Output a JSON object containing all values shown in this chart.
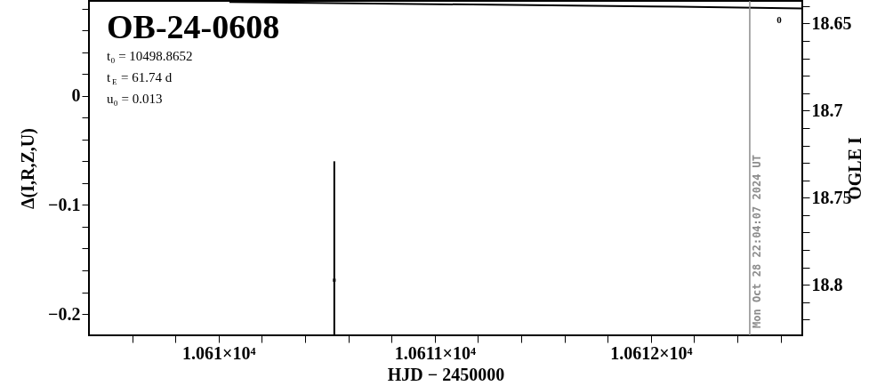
{
  "chart_data": {
    "type": "scatter",
    "title": "OB-24-0608",
    "annotations": [
      "t₀ = 10498.8652",
      "t$_{E}$ = 61.74 d",
      "u₀ = 0.013",
      "0",
      "Mon Oct 28 22:04:07 2024 UT"
    ],
    "xlabel": "HJD − 2450000",
    "ylabel": "Δ(I,R,Z,U)",
    "y2label": "OGLE I",
    "xlim": [
      10609.4,
      10612.7
    ],
    "xticks": [
      {
        "value": 10609.6,
        "label": null
      },
      {
        "value": 10609.8,
        "label": null
      },
      {
        "value": 10610,
        "label": "1.061×10⁴"
      },
      {
        "value": 10610.2,
        "label": null
      },
      {
        "value": 10610.4,
        "label": null
      },
      {
        "value": 10610.6,
        "label": null
      },
      {
        "value": 10610.8,
        "label": null
      },
      {
        "value": 10611,
        "label": "1.0611×10⁴"
      },
      {
        "value": 10611.2,
        "label": null
      },
      {
        "value": 10611.4,
        "label": null
      },
      {
        "value": 10611.6,
        "label": null
      },
      {
        "value": 10611.8,
        "label": null
      },
      {
        "value": 10612,
        "label": "1.0612×10⁴"
      },
      {
        "value": 10612.2,
        "label": null
      },
      {
        "value": 10612.4,
        "label": null
      },
      {
        "value": 10612.6,
        "label": null
      }
    ],
    "ylim": [
      -0.2195,
      0.087
    ],
    "yticks": [
      {
        "value": 0.08,
        "label": null
      },
      {
        "value": 0.06,
        "label": null
      },
      {
        "value": 0.04,
        "label": null
      },
      {
        "value": 0.02,
        "label": null
      },
      0,
      {
        "value": -0.02,
        "label": null
      },
      {
        "value": -0.04,
        "label": null
      },
      {
        "value": -0.06,
        "label": null
      },
      {
        "value": -0.08,
        "label": null
      },
      {
        "value": -0.1,
        "label": "−0.1"
      },
      {
        "value": -0.12,
        "label": null
      },
      {
        "value": -0.14,
        "label": null
      },
      {
        "value": -0.16,
        "label": null
      },
      {
        "value": -0.18,
        "label": null
      },
      {
        "value": -0.2,
        "label": "−0.2"
      }
    ],
    "y2lim": [
      18.829,
      18.637
    ],
    "y2ticks": [
      {
        "value": 18.64,
        "label": null
      },
      18.65,
      {
        "value": 18.66,
        "label": null
      },
      {
        "value": 18.67,
        "label": null
      },
      {
        "value": 18.68,
        "label": null
      },
      {
        "value": 18.69,
        "label": null
      },
      18.7,
      {
        "value": 18.71,
        "label": null
      },
      {
        "value": 18.72,
        "label": null
      },
      {
        "value": 18.73,
        "label": null
      },
      {
        "value": 18.74,
        "label": null
      },
      18.75,
      {
        "value": 18.76,
        "label": null
      },
      {
        "value": 18.77,
        "label": null
      },
      {
        "value": 18.78,
        "label": null
      },
      {
        "value": 18.79,
        "label": null
      },
      18.8,
      {
        "value": 18.81,
        "label": null
      },
      {
        "value": 18.82,
        "label": null
      }
    ],
    "grid": false,
    "ref_lines": [
      {
        "axis": "x",
        "value": 10612.457,
        "color": "#8c8c8c"
      }
    ],
    "series": [
      {
        "marker": "square",
        "color": "#000000",
        "x": [
          10610.535
        ],
        "values": [
          -0.169
        ],
        "errors": [
          [
            -0.2195,
            -0.06
          ]
        ]
      },
      {
        "type": "line",
        "color": "#000000",
        "x": [
          10610.05,
          10611.0,
          10612.0,
          10612.7
        ],
        "values": [
          0.086,
          0.084,
          0.082,
          0.08
        ]
      }
    ]
  }
}
